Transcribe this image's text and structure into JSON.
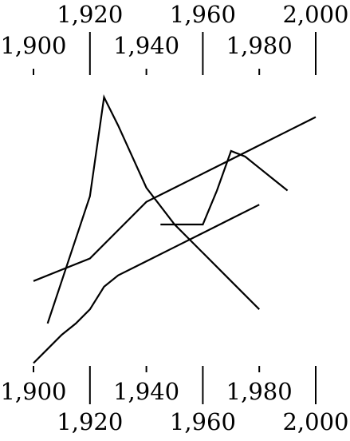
{
  "chart_data": {
    "type": "line",
    "title": "",
    "xlabel": "",
    "ylabel": "",
    "xlim": [
      1900,
      2000
    ],
    "grid": false,
    "legend": "none",
    "y_axis_shown": false,
    "ticks_top": {
      "major": [
        1900,
        1920,
        1940,
        1960,
        1980,
        2000
      ],
      "labels": [
        "1,900",
        "1,920",
        "1,940",
        "1,960",
        "1,980",
        "2,000"
      ]
    },
    "ticks_bottom": {
      "major": [
        1900,
        1920,
        1940,
        1960,
        1980,
        2000
      ],
      "labels": [
        "1,900",
        "1,920",
        "1,940",
        "1,960",
        "1,980",
        "2,000"
      ]
    },
    "series": [
      {
        "x": [
          1900,
          1910,
          1920,
          1930,
          1940,
          1950,
          1960,
          1970,
          1980,
          1990,
          2000
        ],
        "y": [
          3.0,
          3.4,
          3.8,
          4.8,
          5.8,
          6.3,
          6.8,
          7.3,
          7.8,
          8.3,
          8.8
        ]
      },
      {
        "x": [
          1905,
          1910,
          1915,
          1920,
          1925,
          1930,
          1940,
          1950,
          1960,
          1970,
          1980
        ],
        "y": [
          1.5,
          3.0,
          4.5,
          6.0,
          9.5,
          8.5,
          6.3,
          5.0,
          4.0,
          3.0,
          2.0
        ]
      },
      {
        "x": [
          1900,
          1905,
          1910,
          1915,
          1920,
          1925,
          1930,
          1940,
          1950,
          1960,
          1970,
          1980
        ],
        "y": [
          0.1,
          0.6,
          1.1,
          1.5,
          2.0,
          2.8,
          3.2,
          3.7,
          4.2,
          4.7,
          5.2,
          5.7
        ]
      },
      {
        "x": [
          1945,
          1950,
          1955,
          1960,
          1965,
          1970,
          1975,
          1980,
          1985,
          1990
        ],
        "y": [
          5.0,
          5.0,
          5.0,
          5.0,
          6.2,
          7.6,
          7.4,
          7.0,
          6.6,
          6.2
        ]
      }
    ],
    "colors": {
      "line": "#000000",
      "background": "#ffffff"
    }
  }
}
